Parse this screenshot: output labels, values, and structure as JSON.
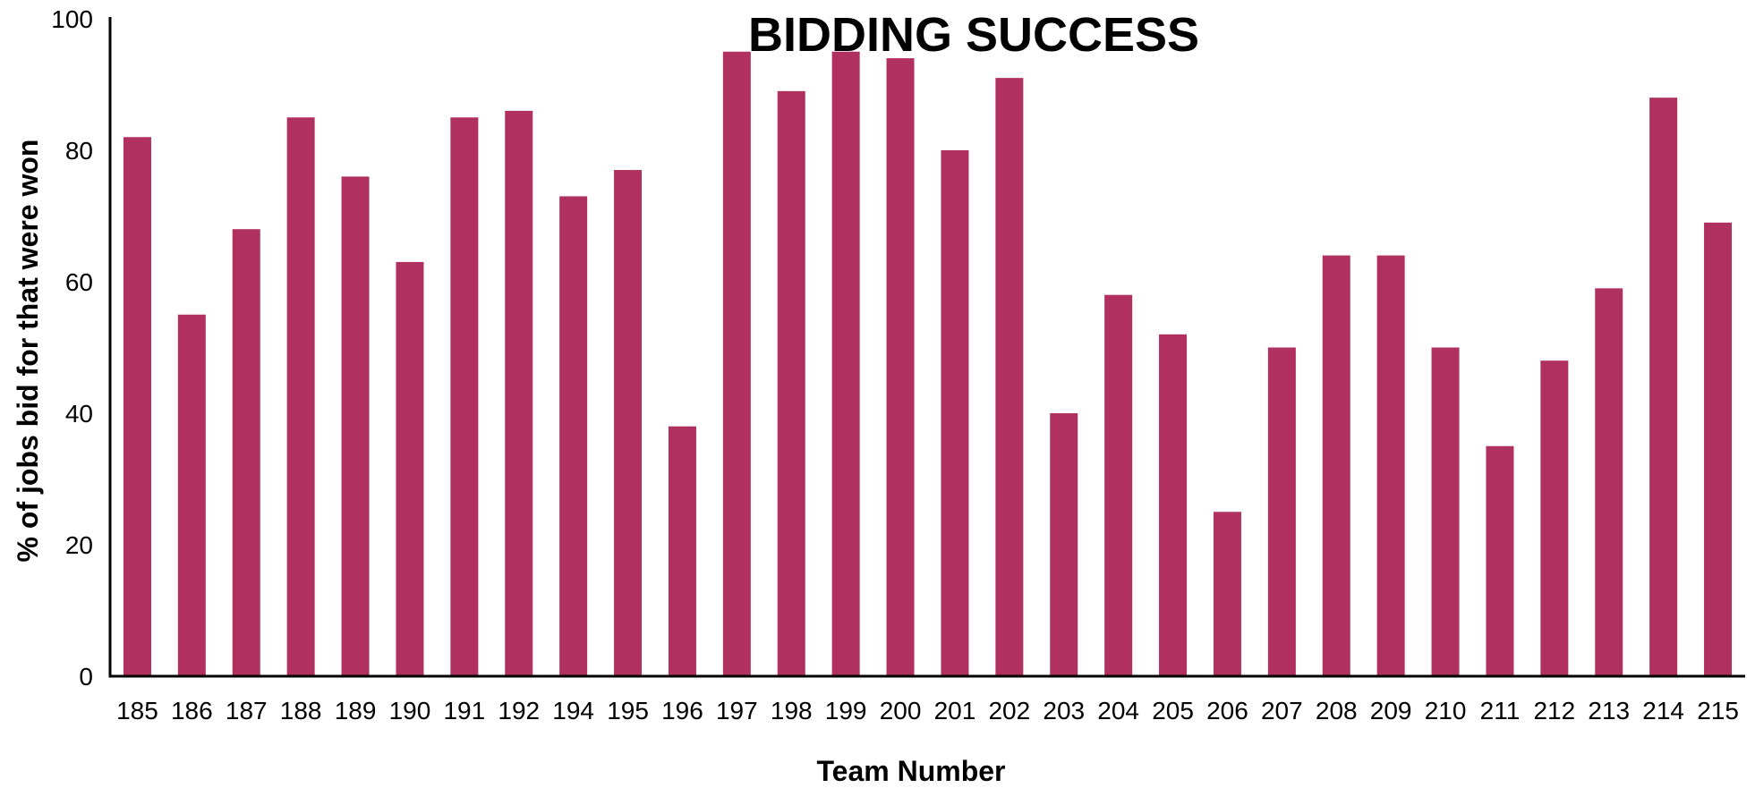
{
  "chart_data": {
    "type": "bar",
    "title": "BIDDING SUCCESS",
    "xlabel": "Team Number",
    "ylabel": "% of jobs bid for that were won",
    "ylim": [
      0,
      100
    ],
    "yticks": [
      0,
      20,
      40,
      60,
      80,
      100
    ],
    "grid": false,
    "legend": "none",
    "bar_color": "#B03060",
    "categories": [
      "185",
      "186",
      "187",
      "188",
      "189",
      "190",
      "191",
      "192",
      "194",
      "195",
      "196",
      "197",
      "198",
      "199",
      "200",
      "201",
      "202",
      "203",
      "204",
      "205",
      "206",
      "207",
      "208",
      "209",
      "210",
      "211",
      "212",
      "213",
      "214",
      "215"
    ],
    "values": [
      82,
      55,
      68,
      85,
      76,
      63,
      85,
      86,
      73,
      77,
      38,
      95,
      89,
      95,
      94,
      80,
      91,
      40,
      58,
      52,
      25,
      50,
      64,
      64,
      50,
      35,
      48,
      59,
      88,
      69
    ]
  }
}
